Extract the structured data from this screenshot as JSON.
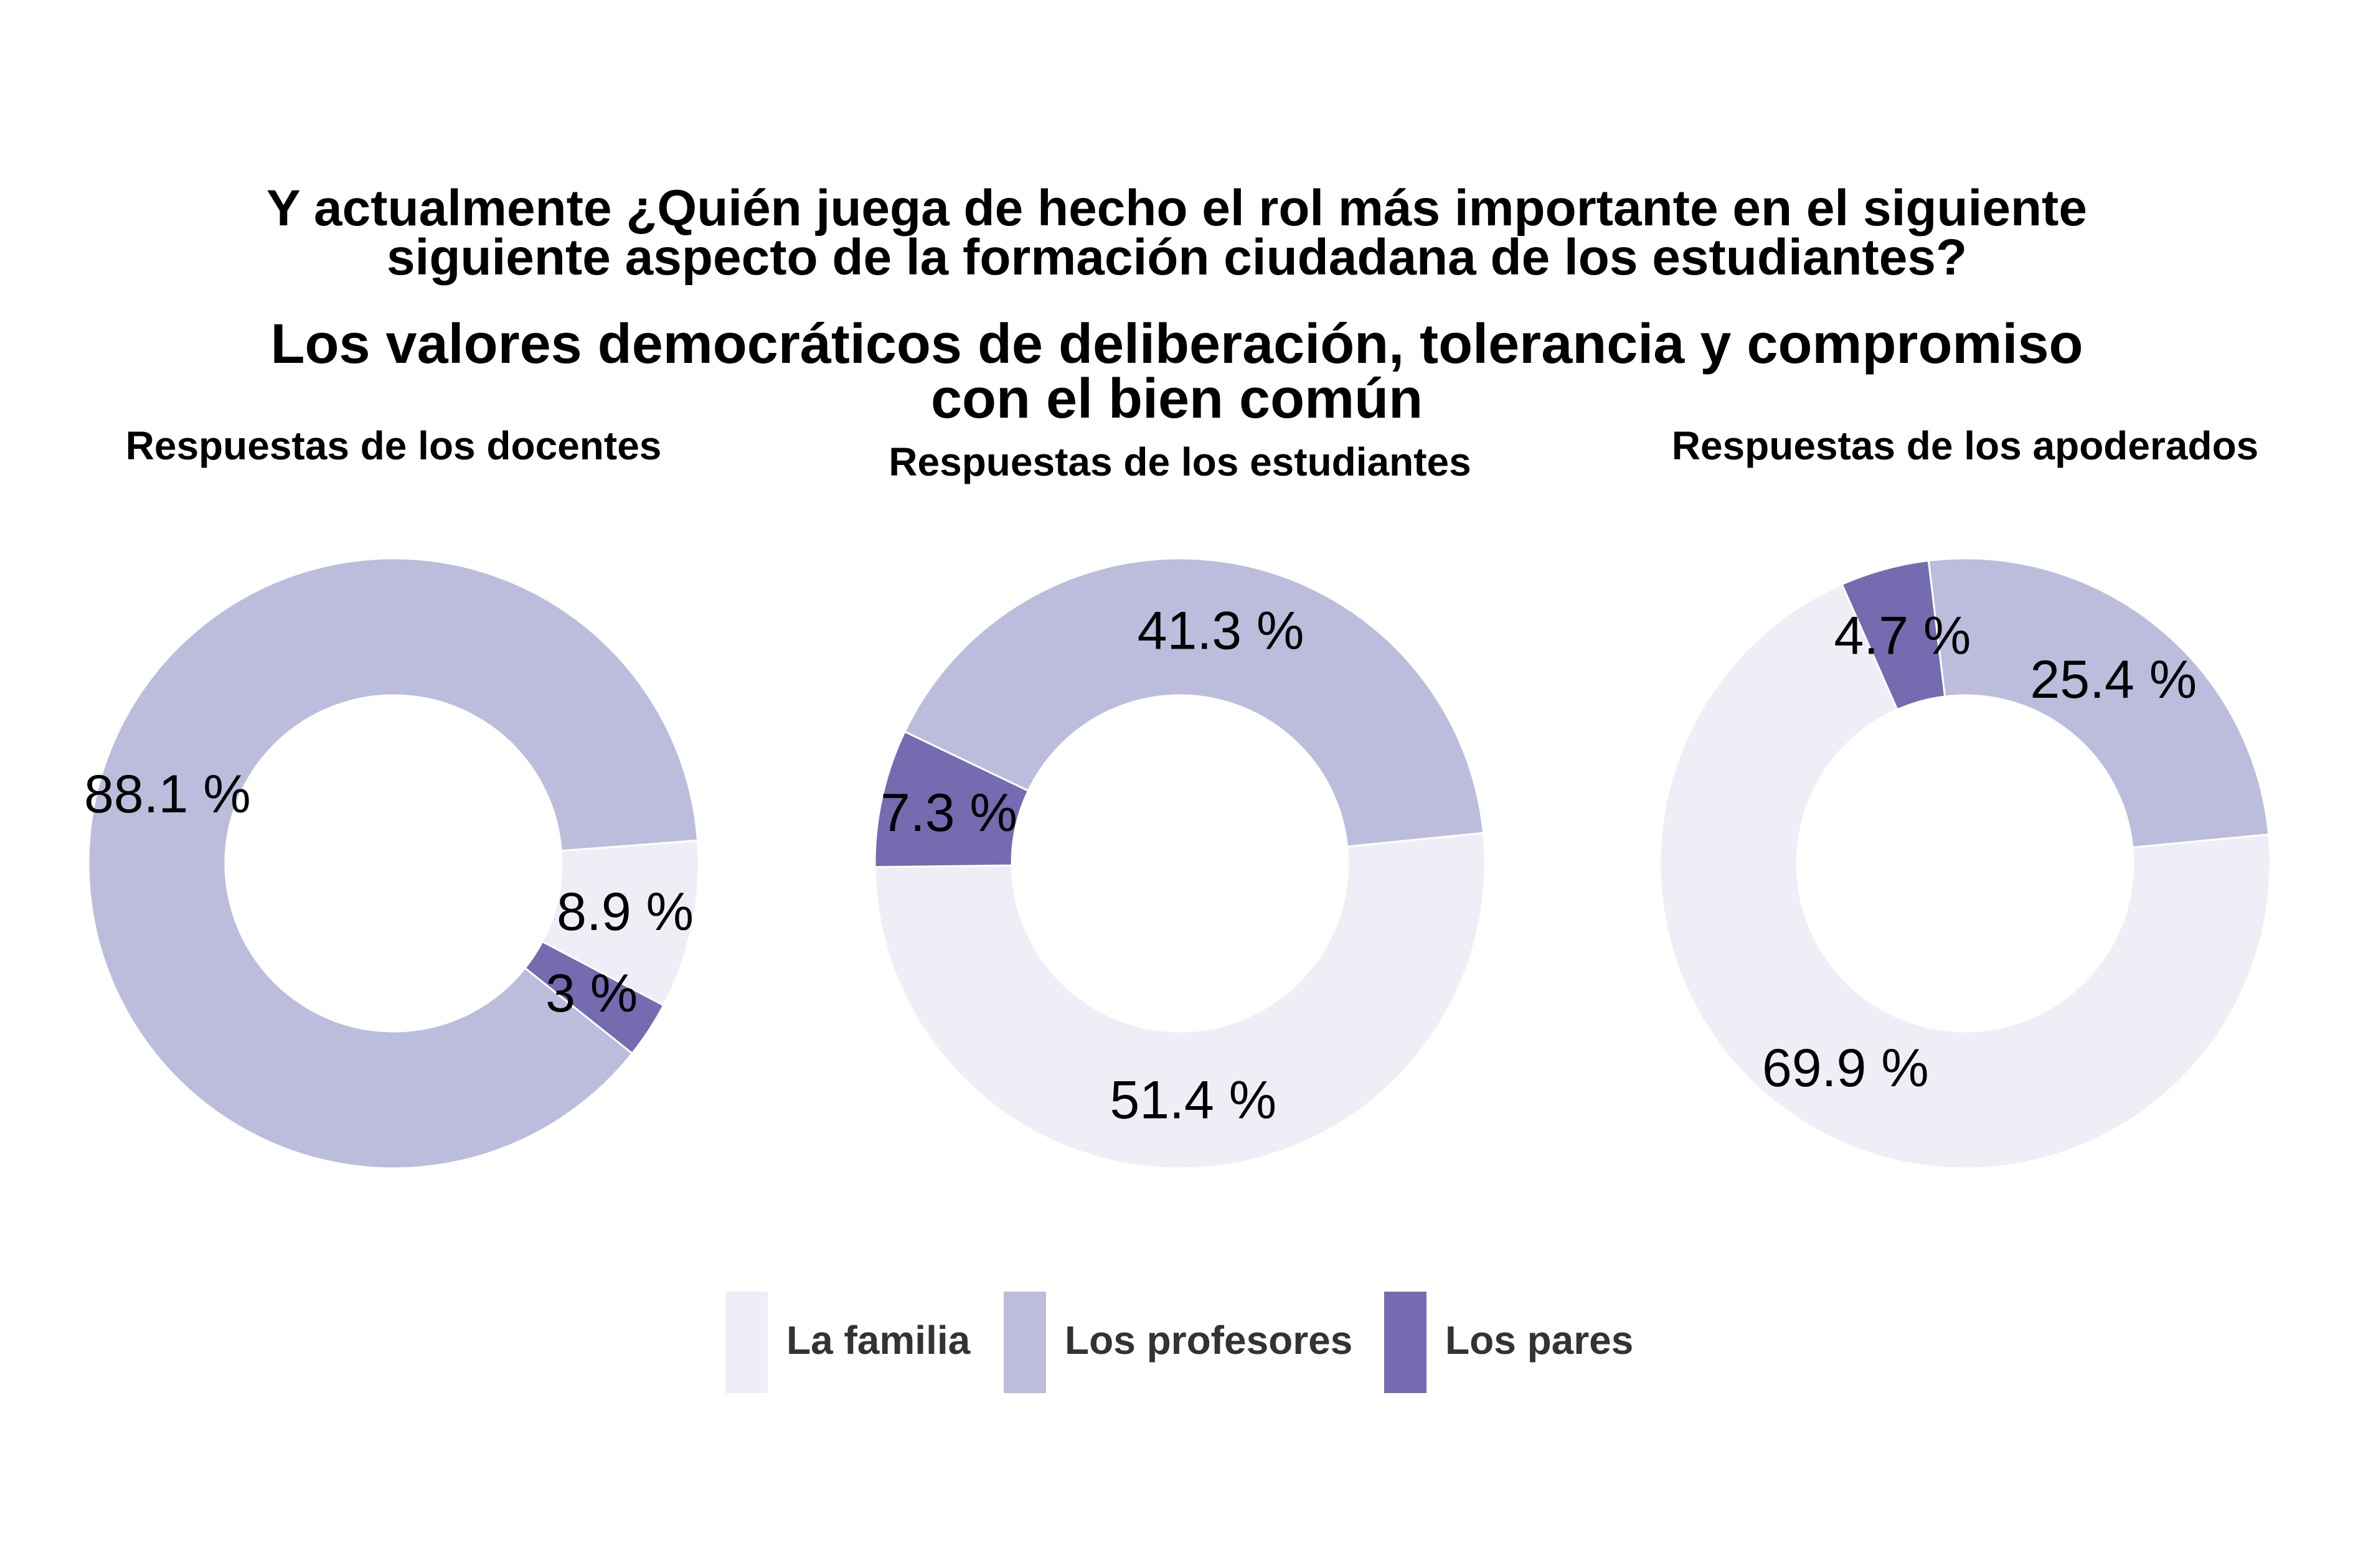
{
  "chart_data": [
    {
      "type": "pie",
      "variant": "donut",
      "panel_title": "Respuestas de los docentes",
      "slices": [
        {
          "name": "La familia",
          "value": 8.9,
          "label": "8.9 %"
        },
        {
          "name": "Los profesores",
          "value": 88.1,
          "label": "88.1 %"
        },
        {
          "name": "Los pares",
          "value": 3.0,
          "label": "3 %"
        }
      ]
    },
    {
      "type": "pie",
      "variant": "donut",
      "panel_title": "Respuestas de los estudiantes",
      "slices": [
        {
          "name": "La familia",
          "value": 51.4,
          "label": "51.4 %"
        },
        {
          "name": "Los profesores",
          "value": 41.3,
          "label": "41.3 %"
        },
        {
          "name": "Los pares",
          "value": 7.3,
          "label": "7.3 %"
        }
      ]
    },
    {
      "type": "pie",
      "variant": "donut",
      "panel_title": "Respuestas de los apoderados",
      "slices": [
        {
          "name": "La familia",
          "value": 69.9,
          "label": "69.9 %"
        },
        {
          "name": "Los profesores",
          "value": 25.4,
          "label": "25.4 %"
        },
        {
          "name": "Los pares",
          "value": 4.7,
          "label": "4.7 %"
        }
      ]
    }
  ],
  "title": {
    "line1": "Y actualmente ¿Quién juega de hecho el rol más importante en el siguiente",
    "line2": "siguiente aspecto de la formación ciudadana de los estudiantes?"
  },
  "subtitle": {
    "line1": "Los valores democráticos de deliberación, tolerancia y compromiso",
    "line2": "con el bien común"
  },
  "legend": {
    "placement": "bottom",
    "items": [
      {
        "label": "La familia",
        "color": "#efedf5"
      },
      {
        "label": "Los profesores",
        "color": "#bcbddc"
      },
      {
        "label": "Los pares",
        "color": "#756bb1"
      }
    ]
  },
  "colors": {
    "La familia": "#efedf5",
    "Los profesores": "#bcbddc",
    "Los pares": "#756bb1"
  }
}
